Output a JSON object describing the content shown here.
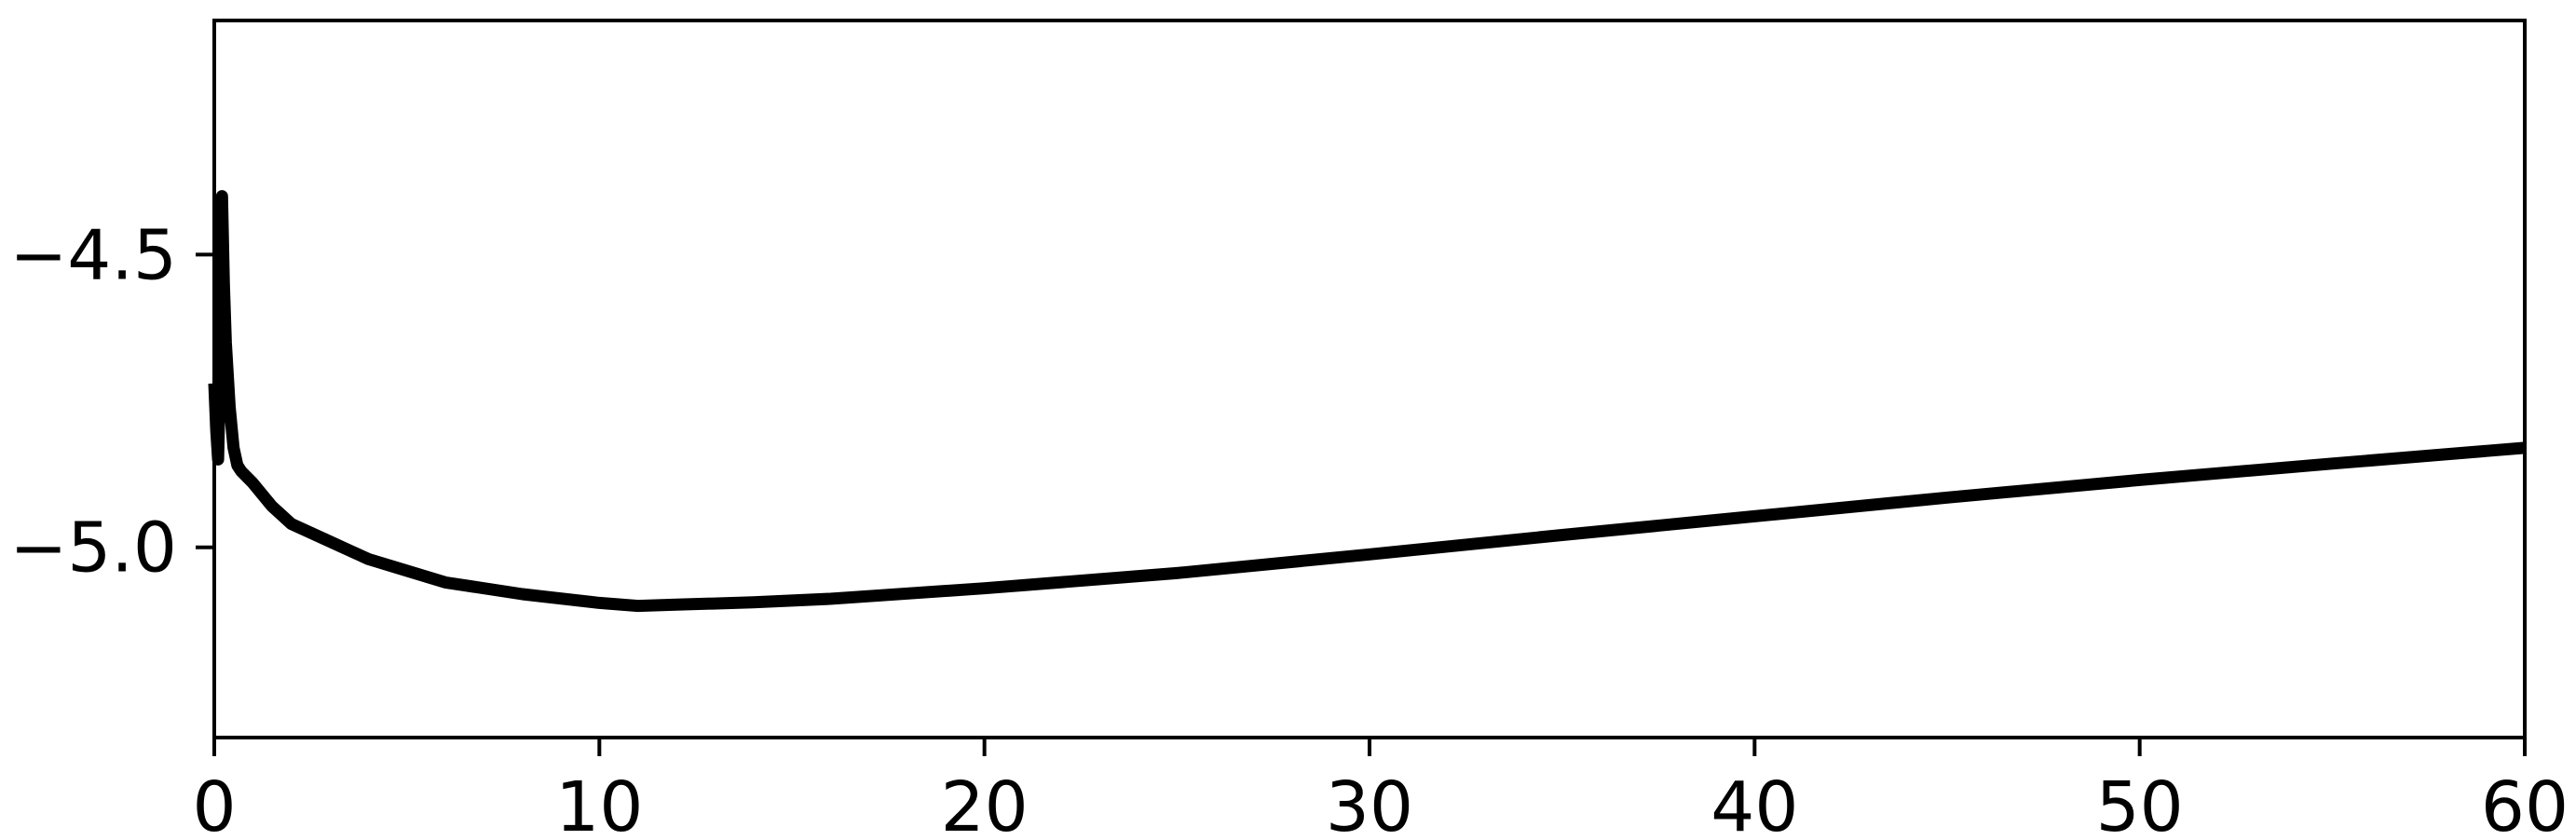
{
  "chart_data": {
    "type": "line",
    "title": "",
    "xlabel": "",
    "ylabel": "",
    "xlim": [
      0,
      60
    ],
    "ylim": [
      -5.325,
      -4.1
    ],
    "grid": false,
    "x_ticks": [
      0,
      10,
      20,
      30,
      40,
      50,
      60
    ],
    "x_tick_labels": [
      "0",
      "10",
      "20",
      "30",
      "40",
      "50",
      "60"
    ],
    "y_ticks": [
      -4.5,
      -5.0
    ],
    "y_tick_labels": [
      "−4.5",
      "−5.0"
    ],
    "series": [
      {
        "color": "#000000",
        "x": [
          0,
          0.05,
          0.1,
          0.15,
          0.2,
          0.25,
          0.3,
          0.4,
          0.5,
          0.6,
          0.7,
          1,
          1.5,
          2,
          3,
          4,
          5,
          6,
          8,
          10,
          11,
          12,
          14,
          16,
          20,
          25,
          30,
          35,
          40,
          45,
          50,
          55,
          60
        ],
        "y": [
          -4.72,
          -4.8,
          -4.85,
          -4.7,
          -4.4,
          -4.55,
          -4.65,
          -4.76,
          -4.83,
          -4.86,
          -4.87,
          -4.89,
          -4.93,
          -4.96,
          -4.99,
          -5.02,
          -5.04,
          -5.06,
          -5.08,
          -5.095,
          -5.1,
          -5.098,
          -5.094,
          -5.088,
          -5.07,
          -5.044,
          -5.012,
          -4.979,
          -4.947,
          -4.915,
          -4.885,
          -4.857,
          -4.83
        ]
      }
    ]
  }
}
